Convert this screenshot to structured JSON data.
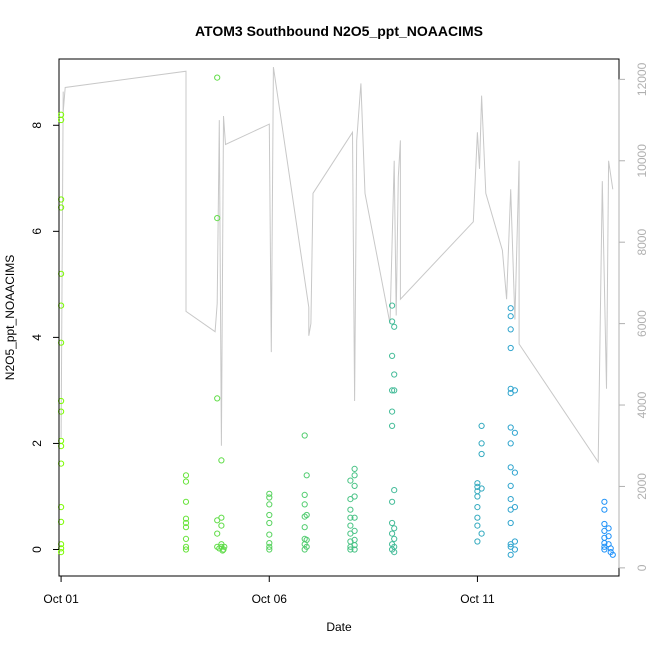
{
  "chart_data": {
    "type": "scatter",
    "title": "ATOM3 Southbound N2O5_ppt_NOAACIMS",
    "xlabel": "Date",
    "ylabel": "N2O5_ppt_NOAACIMS",
    "x_ticks": [
      "Oct 01",
      "Oct 06",
      "Oct 11"
    ],
    "y_ticks": [
      "0",
      "2",
      "4",
      "6",
      "8"
    ],
    "y2_ticks": [
      "0",
      "2000",
      "4000",
      "6000",
      "8000",
      "10000",
      "12000"
    ],
    "xlim": [
      0.95,
      14.4
    ],
    "ylim": [
      -0.5,
      9.25
    ],
    "y2lim": [
      -200,
      12500
    ],
    "grid": false,
    "legend": "none",
    "point_color_start": "#7cfc00",
    "point_color_end": "#1e90ff",
    "line_color": "#c8c8c8",
    "series": [
      {
        "values": [
          [
            1.0,
            8.2
          ],
          [
            1.0,
            8.1
          ],
          [
            1.0,
            6.6
          ],
          [
            1.0,
            6.45
          ],
          [
            1.0,
            5.2
          ],
          [
            1.0,
            4.6
          ],
          [
            1.0,
            3.9
          ],
          [
            1.0,
            2.8
          ],
          [
            1.0,
            2.6
          ],
          [
            1.0,
            2.05
          ],
          [
            1.0,
            1.95
          ],
          [
            1.0,
            1.62
          ],
          [
            1.0,
            0.8
          ],
          [
            1.0,
            0.52
          ],
          [
            1.0,
            0.1
          ],
          [
            1.0,
            0.02
          ],
          [
            1.0,
            -0.05
          ],
          [
            4.0,
            1.4
          ],
          [
            4.0,
            1.28
          ],
          [
            4.0,
            0.9
          ],
          [
            4.0,
            0.58
          ],
          [
            4.0,
            0.5
          ],
          [
            4.0,
            0.42
          ],
          [
            4.0,
            0.2
          ],
          [
            4.0,
            0.05
          ],
          [
            4.0,
            0.0
          ],
          [
            4.75,
            8.9
          ],
          [
            4.75,
            6.25
          ],
          [
            4.75,
            2.85
          ],
          [
            4.75,
            0.55
          ],
          [
            4.75,
            0.3
          ],
          [
            4.75,
            0.05
          ],
          [
            4.85,
            1.68
          ],
          [
            4.85,
            0.6
          ],
          [
            4.85,
            0.45
          ],
          [
            4.85,
            0.1
          ],
          [
            4.85,
            0.05
          ],
          [
            4.9,
            0.0
          ],
          [
            4.92,
            0.05
          ],
          [
            4.8,
            0.02
          ],
          [
            4.88,
            -0.02
          ],
          [
            6.0,
            1.05
          ],
          [
            6.0,
            0.98
          ],
          [
            6.0,
            0.85
          ],
          [
            6.0,
            0.65
          ],
          [
            6.0,
            0.5
          ],
          [
            6.0,
            0.28
          ],
          [
            6.0,
            0.12
          ],
          [
            6.0,
            0.05
          ],
          [
            6.0,
            0.0
          ],
          [
            6.85,
            2.15
          ],
          [
            6.85,
            1.03
          ],
          [
            6.85,
            0.85
          ],
          [
            6.85,
            0.62
          ],
          [
            6.85,
            0.42
          ],
          [
            6.85,
            0.2
          ],
          [
            6.85,
            0.1
          ],
          [
            6.85,
            0.0
          ],
          [
            6.9,
            1.4
          ],
          [
            6.9,
            0.65
          ],
          [
            6.9,
            0.18
          ],
          [
            6.9,
            0.05
          ],
          [
            7.95,
            1.3
          ],
          [
            7.95,
            0.95
          ],
          [
            7.95,
            0.75
          ],
          [
            7.95,
            0.6
          ],
          [
            7.95,
            0.45
          ],
          [
            7.95,
            0.3
          ],
          [
            7.95,
            0.15
          ],
          [
            7.95,
            0.05
          ],
          [
            7.95,
            0.0
          ],
          [
            8.05,
            1.52
          ],
          [
            8.05,
            1.4
          ],
          [
            8.05,
            1.2
          ],
          [
            8.05,
            1.0
          ],
          [
            8.05,
            0.6
          ],
          [
            8.05,
            0.35
          ],
          [
            8.05,
            0.18
          ],
          [
            8.05,
            0.08
          ],
          [
            8.05,
            0.0
          ],
          [
            8.95,
            4.6
          ],
          [
            8.95,
            4.3
          ],
          [
            8.95,
            3.65
          ],
          [
            8.95,
            3.0
          ],
          [
            8.95,
            2.6
          ],
          [
            8.95,
            2.33
          ],
          [
            8.95,
            0.9
          ],
          [
            8.95,
            0.5
          ],
          [
            8.95,
            0.3
          ],
          [
            8.95,
            0.1
          ],
          [
            8.95,
            0.0
          ],
          [
            9.0,
            4.2
          ],
          [
            9.0,
            3.3
          ],
          [
            9.0,
            3.0
          ],
          [
            9.0,
            1.12
          ],
          [
            9.0,
            0.4
          ],
          [
            9.0,
            0.2
          ],
          [
            9.0,
            0.05
          ],
          [
            9.0,
            -0.05
          ],
          [
            11.0,
            1.25
          ],
          [
            11.0,
            1.18
          ],
          [
            11.0,
            1.1
          ],
          [
            11.0,
            1.0
          ],
          [
            11.0,
            0.8
          ],
          [
            11.0,
            0.6
          ],
          [
            11.0,
            0.45
          ],
          [
            11.0,
            0.15
          ],
          [
            11.1,
            2.33
          ],
          [
            11.1,
            2.0
          ],
          [
            11.1,
            1.8
          ],
          [
            11.1,
            1.15
          ],
          [
            11.1,
            0.3
          ],
          [
            11.8,
            4.55
          ],
          [
            11.8,
            4.4
          ],
          [
            11.8,
            4.15
          ],
          [
            11.8,
            3.8
          ],
          [
            11.8,
            3.03
          ],
          [
            11.8,
            2.95
          ],
          [
            11.8,
            2.3
          ],
          [
            11.8,
            2.0
          ],
          [
            11.8,
            1.55
          ],
          [
            11.8,
            1.2
          ],
          [
            11.8,
            0.95
          ],
          [
            11.8,
            0.75
          ],
          [
            11.8,
            0.5
          ],
          [
            11.8,
            0.1
          ],
          [
            11.8,
            0.05
          ],
          [
            11.8,
            -0.1
          ],
          [
            11.9,
            3.0
          ],
          [
            11.9,
            2.2
          ],
          [
            11.9,
            1.45
          ],
          [
            11.9,
            0.8
          ],
          [
            11.9,
            0.15
          ],
          [
            11.9,
            0.0
          ],
          [
            14.05,
            0.9
          ],
          [
            14.05,
            0.75
          ],
          [
            14.05,
            0.48
          ],
          [
            14.05,
            0.35
          ],
          [
            14.05,
            0.22
          ],
          [
            14.05,
            0.12
          ],
          [
            14.05,
            0.05
          ],
          [
            14.05,
            0.0
          ],
          [
            14.15,
            0.4
          ],
          [
            14.15,
            0.25
          ],
          [
            14.15,
            0.1
          ],
          [
            14.2,
            0.02
          ],
          [
            14.2,
            -0.05
          ],
          [
            14.25,
            -0.1
          ]
        ]
      },
      {
        "values": [
          [
            1.0,
            3200
          ],
          [
            1.05,
            11700
          ],
          [
            1.05,
            11200
          ],
          [
            1.1,
            11800
          ],
          [
            4.0,
            12200
          ],
          [
            4.0,
            6300
          ],
          [
            4.7,
            5800
          ],
          [
            4.75,
            6500
          ],
          [
            4.8,
            11000
          ],
          [
            4.85,
            3000
          ],
          [
            4.9,
            11100
          ],
          [
            4.95,
            10400
          ],
          [
            6.0,
            10900
          ],
          [
            6.05,
            5300
          ],
          [
            6.1,
            12300
          ],
          [
            6.95,
            6400
          ],
          [
            6.95,
            5700
          ],
          [
            7.0,
            6000
          ],
          [
            7.05,
            9200
          ],
          [
            8.0,
            10700
          ],
          [
            8.05,
            4100
          ],
          [
            8.1,
            10500
          ],
          [
            8.2,
            11900
          ],
          [
            8.3,
            9200
          ],
          [
            8.9,
            6000
          ],
          [
            9.0,
            10000
          ],
          [
            9.05,
            6200
          ],
          [
            9.1,
            9600
          ],
          [
            9.15,
            10500
          ],
          [
            9.15,
            6600
          ],
          [
            10.9,
            8500
          ],
          [
            11.0,
            10700
          ],
          [
            11.05,
            9800
          ],
          [
            11.1,
            11600
          ],
          [
            11.2,
            9200
          ],
          [
            11.6,
            7800
          ],
          [
            11.7,
            6600
          ],
          [
            11.8,
            9300
          ],
          [
            11.9,
            6100
          ],
          [
            12.0,
            10000
          ],
          [
            12.0,
            5500
          ],
          [
            13.9,
            2600
          ],
          [
            14.0,
            9500
          ],
          [
            14.1,
            4400
          ],
          [
            14.15,
            10000
          ],
          [
            14.25,
            9300
          ]
        ]
      }
    ]
  }
}
